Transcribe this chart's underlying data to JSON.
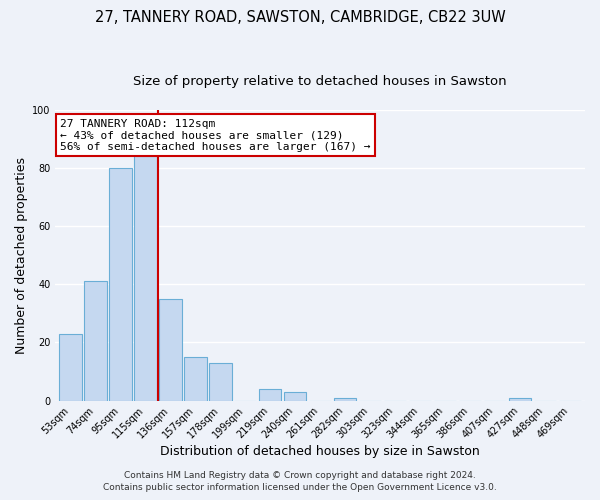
{
  "title": "27, TANNERY ROAD, SAWSTON, CAMBRIDGE, CB22 3UW",
  "subtitle": "Size of property relative to detached houses in Sawston",
  "xlabel": "Distribution of detached houses by size in Sawston",
  "ylabel": "Number of detached properties",
  "footer_line1": "Contains HM Land Registry data © Crown copyright and database right 2024.",
  "footer_line2": "Contains public sector information licensed under the Open Government Licence v3.0.",
  "bin_labels": [
    "53sqm",
    "74sqm",
    "95sqm",
    "115sqm",
    "136sqm",
    "157sqm",
    "178sqm",
    "199sqm",
    "219sqm",
    "240sqm",
    "261sqm",
    "282sqm",
    "303sqm",
    "323sqm",
    "344sqm",
    "365sqm",
    "386sqm",
    "407sqm",
    "427sqm",
    "448sqm",
    "469sqm"
  ],
  "bar_values": [
    23,
    41,
    80,
    84,
    35,
    15,
    13,
    0,
    4,
    3,
    0,
    1,
    0,
    0,
    0,
    0,
    0,
    0,
    1,
    0,
    0
  ],
  "bar_color": "#c5d8f0",
  "bar_edge_color": "#6aaed6",
  "property_line_color": "#cc0000",
  "ylim": [
    0,
    100
  ],
  "yticks": [
    0,
    20,
    40,
    60,
    80,
    100
  ],
  "annotation_line1": "27 TANNERY ROAD: 112sqm",
  "annotation_line2": "← 43% of detached houses are smaller (129)",
  "annotation_line3": "56% of semi-detached houses are larger (167) →",
  "annotation_box_color": "#ffffff",
  "annotation_box_edge": "#cc0000",
  "background_color": "#eef2f9",
  "plot_bg_color": "#eef2f9",
  "grid_color": "#ffffff",
  "title_fontsize": 10.5,
  "subtitle_fontsize": 9.5,
  "axis_label_fontsize": 9,
  "tick_fontsize": 7,
  "annotation_fontsize": 8,
  "footer_fontsize": 6.5
}
